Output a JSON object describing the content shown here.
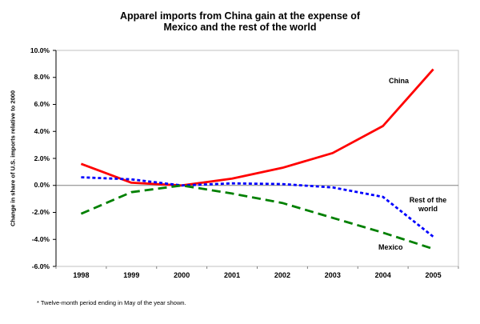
{
  "title": {
    "line1": "Apparel imports from China gain at the expense of",
    "line2": "Mexico and the rest of the world"
  },
  "footnote": "* Twelve-month period ending in May of the year shown.",
  "series_labels": {
    "china": "China",
    "row_line1": "Rest of the",
    "row_line2": "world",
    "mexico": "Mexico"
  },
  "chart_data": {
    "type": "line",
    "title": "Apparel imports from China gain at the expense of Mexico and the rest of the world",
    "xlabel": "",
    "ylabel": "Change in share of U.S. imports relative to 2000",
    "x_labels": [
      "1998",
      "1999",
      "2000",
      "2001",
      "2002",
      "2003",
      "2004",
      "2005"
    ],
    "ylim": [
      -6,
      10
    ],
    "y_ticks": [
      {
        "value": 10,
        "label": "10.0%"
      },
      {
        "value": 8,
        "label": "8.0%"
      },
      {
        "value": 6,
        "label": "6.0%"
      },
      {
        "value": 4,
        "label": "4.0%"
      },
      {
        "value": 2,
        "label": "2.0%"
      },
      {
        "value": 0,
        "label": "0.0%"
      },
      {
        "value": -2,
        "label": "-2.0%"
      },
      {
        "value": -4,
        "label": "-4.0%"
      },
      {
        "value": -6,
        "label": "-6.0%"
      }
    ],
    "grid": "zero-line-only",
    "legend_position": "inline-labels-right",
    "series": [
      {
        "name": "China",
        "color": "#ff0000",
        "style": "solid",
        "values": [
          1.6,
          0.2,
          0.0,
          0.5,
          1.3,
          2.4,
          4.4,
          8.6
        ]
      },
      {
        "name": "Rest of the world",
        "color": "#0000ff",
        "style": "dotted",
        "values": [
          0.6,
          0.45,
          0.0,
          0.15,
          0.1,
          -0.15,
          -0.85,
          -3.8
        ]
      },
      {
        "name": "Mexico",
        "color": "#008000",
        "style": "dashed",
        "values": [
          -2.1,
          -0.5,
          0.0,
          -0.6,
          -1.3,
          -2.4,
          -3.5,
          -4.7
        ]
      }
    ],
    "axis_colors": {
      "y_axis": "#000000",
      "zero_line": "#808080",
      "plot_border": "#c0c0c0"
    },
    "footnote": "* Twelve-month period ending in May of the year shown."
  }
}
